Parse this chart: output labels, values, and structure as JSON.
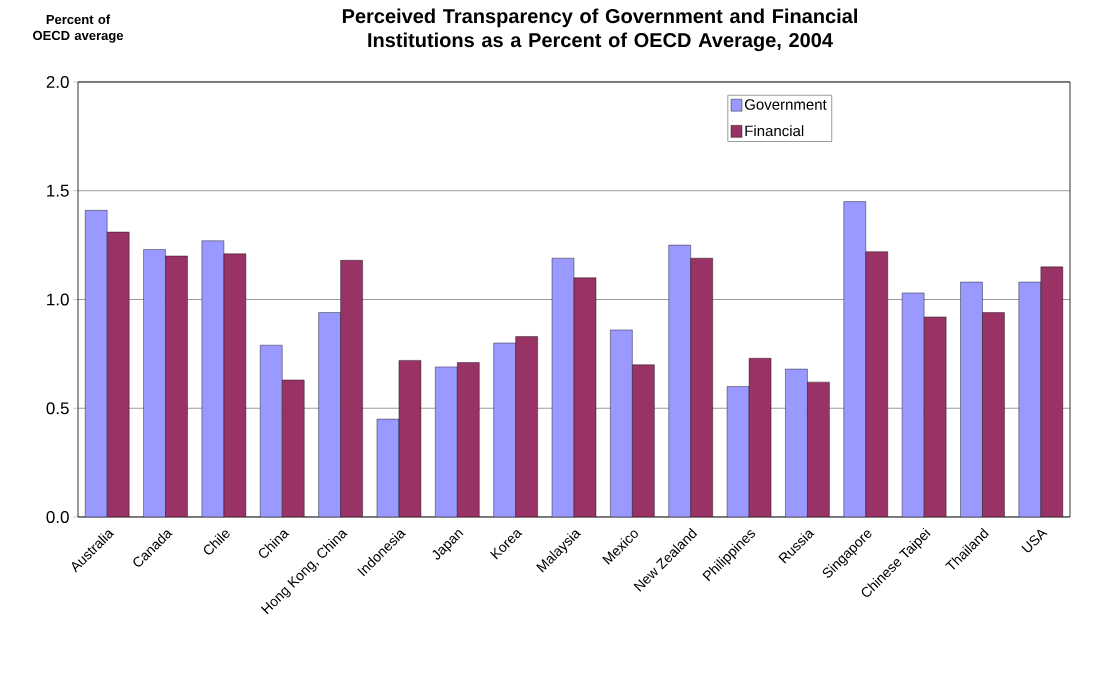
{
  "chart_data": {
    "type": "bar",
    "title": "Perceived Transparency of Government and Financial Institutions as a Percent of OECD Average, 2004",
    "ylabel": "Percent of OECD average",
    "categories": [
      "Australia",
      "Canada",
      "Chile",
      "China",
      "Hong Kong, China",
      "Indonesia",
      "Japan",
      "Korea",
      "Malaysia",
      "Mexico",
      "New Zealand",
      "Philippines",
      "Russia",
      "Singapore",
      "Chinese Taipei",
      "Thailand",
      "USA"
    ],
    "series": [
      {
        "name": "Government",
        "color": "#9999ff",
        "values": [
          1.41,
          1.23,
          1.27,
          0.79,
          0.94,
          0.45,
          0.69,
          0.8,
          1.19,
          0.86,
          1.25,
          0.6,
          0.68,
          1.45,
          1.03,
          1.08,
          1.08
        ]
      },
      {
        "name": "Financial",
        "color": "#993366",
        "values": [
          1.31,
          1.2,
          1.21,
          0.63,
          1.18,
          0.72,
          0.71,
          0.83,
          1.1,
          0.7,
          1.19,
          0.73,
          0.62,
          1.22,
          0.92,
          0.94,
          1.15
        ]
      }
    ],
    "ylim": [
      0,
      2
    ],
    "yticks": [
      {
        "value": 0,
        "label": "0.0"
      },
      {
        "value": 0.5,
        "label": "0.5"
      },
      {
        "value": 1,
        "label": "1.0"
      },
      {
        "value": 1.5,
        "label": "1.5"
      },
      {
        "value": 2,
        "label": "2.0"
      }
    ],
    "grid": "y",
    "legend": "top right"
  }
}
